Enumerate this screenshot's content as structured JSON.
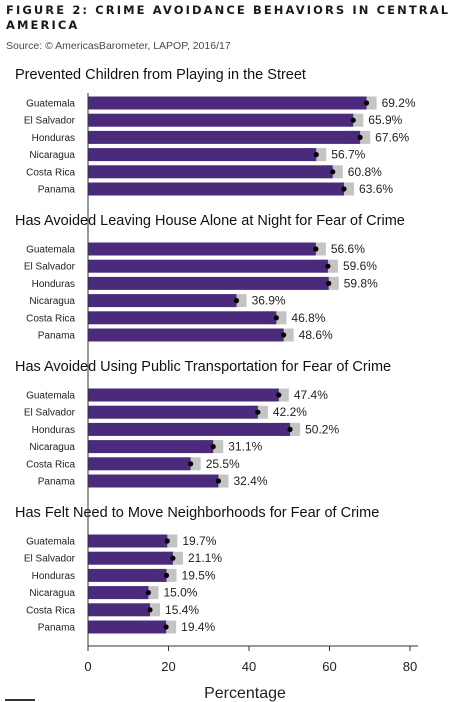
{
  "figure": {
    "title": "FIGURE 2: CRIME AVOIDANCE BEHAVIORS IN CENTRAL AMERICA",
    "source": "Source: © AmericasBarometer, LAPOP, 2016/17"
  },
  "colors": {
    "bar": "#4b2a7b",
    "ci": "#c4c4c4",
    "point": "#000000",
    "axis": "#333333"
  },
  "chart_data": {
    "type": "bar",
    "orientation": "horizontal",
    "categories": [
      "Guatemala",
      "El Salvador",
      "Honduras",
      "Nicaragua",
      "Costa Rica",
      "Panama"
    ],
    "xlabel": "Percentage",
    "xlim": [
      0,
      80
    ],
    "xticks": [
      0,
      20,
      40,
      60,
      80
    ],
    "grid": false,
    "series": [
      {
        "name": "Prevented Children from Playing in the Street",
        "values": [
          69.2,
          65.9,
          67.6,
          56.7,
          60.8,
          63.6
        ],
        "value_labels": [
          "69.2%",
          "65.9%",
          "67.6%",
          "56.7%",
          "60.8%",
          "63.6%"
        ]
      },
      {
        "name": "Has Avoided Leaving House Alone at Night for Fear of Crime",
        "values": [
          56.6,
          59.6,
          59.8,
          36.9,
          46.8,
          48.6
        ],
        "value_labels": [
          "56.6%",
          "59.6%",
          "59.8%",
          "36.9%",
          "46.8%",
          "48.6%"
        ]
      },
      {
        "name": "Has Avoided Using Public Transportation for Fear of Crime",
        "values": [
          47.4,
          42.2,
          50.2,
          31.1,
          25.5,
          32.4
        ],
        "value_labels": [
          "47.4%",
          "42.2%",
          "50.2%",
          "31.1%",
          "25.5%",
          "32.4%"
        ]
      },
      {
        "name": "Has Felt Need to Move Neighborhoods for Fear of Crime",
        "values": [
          19.7,
          21.1,
          19.5,
          15.0,
          15.4,
          19.4
        ],
        "value_labels": [
          "19.7%",
          "21.1%",
          "19.5%",
          "15.0%",
          "15.4%",
          "19.4%"
        ]
      }
    ],
    "ci_halfwidth": 2.5
  }
}
